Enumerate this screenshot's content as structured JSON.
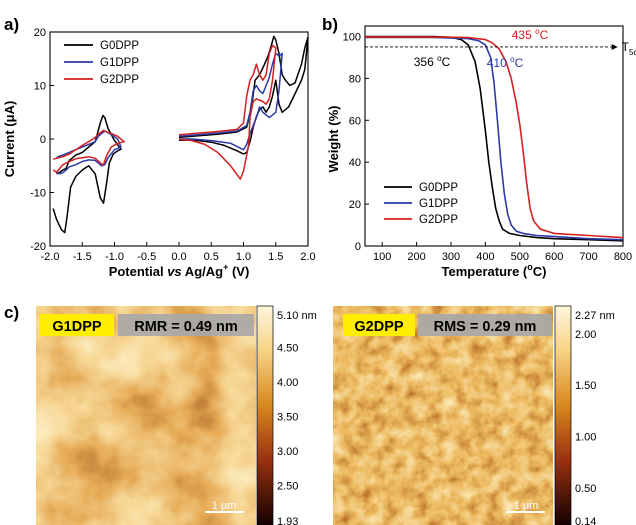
{
  "panels": {
    "a": {
      "label": "a)",
      "chart_data": {
        "type": "line",
        "xlabel_parts": [
          "Potential ",
          "vs",
          " Ag/Ag",
          "+",
          " (V)"
        ],
        "ylabel": "Current (μA)",
        "xlim": [
          -2.0,
          2.0
        ],
        "ylim": [
          -20,
          20
        ],
        "xticks": [
          "-2.0",
          "-1.5",
          "-1.0",
          "-0.5",
          "0.0",
          "0.5",
          "1.0",
          "1.5",
          "2.0"
        ],
        "yticks": [
          "-20",
          "-10",
          "0",
          "10",
          "20"
        ],
        "legend": [
          "G0DPP",
          "G1DPP",
          "G2DPP"
        ],
        "legend_placement": "top-left",
        "series": [
          {
            "name": "G0DPP",
            "color": "#000000",
            "segments": [
              {
                "x": [
                  -1.95,
                  -1.9,
                  -1.82,
                  -1.77,
                  -1.73,
                  -1.68,
                  -1.6,
                  -1.5,
                  -1.4,
                  -1.3,
                  -1.22,
                  -1.17,
                  -1.12,
                  -1.08,
                  -1.02,
                  -0.95,
                  -0.9,
                  -1.0,
                  -1.1,
                  -1.15,
                  -1.18,
                  -1.22,
                  -1.3,
                  -1.4,
                  -1.5,
                  -1.6,
                  -1.7,
                  -1.75,
                  -1.8,
                  -1.85,
                  -1.9
                ],
                "y": [
                  -13,
                  -15,
                  -17,
                  -17.5,
                  -14,
                  -9,
                  -7,
                  -5.8,
                  -5,
                  -6.5,
                  -11,
                  -12,
                  -8,
                  -4.5,
                  -2.8,
                  -2.2,
                  -1.9,
                  -0.3,
                  2,
                  4,
                  4.4,
                  3,
                  -0.5,
                  -1.5,
                  -2.5,
                  -3,
                  -4,
                  -5.5,
                  -5.8,
                  -6.2,
                  -6.5
                ]
              },
              {
                "x": [
                  0.0,
                  0.3,
                  0.6,
                  0.9,
                  1.05,
                  1.12,
                  1.18,
                  1.25,
                  1.32,
                  1.38,
                  1.42,
                  1.47,
                  1.5,
                  1.55,
                  1.6,
                  1.65,
                  1.72,
                  1.8,
                  1.9,
                  1.95,
                  2.0,
                  1.95,
                  1.9,
                  1.8,
                  1.7,
                  1.6,
                  1.55,
                  1.5,
                  1.45,
                  1.4,
                  1.35,
                  1.3,
                  1.25,
                  1.2,
                  1.15,
                  1.1,
                  1.05,
                  1.0,
                  0.9,
                  0.7,
                  0.5,
                  0.3,
                  0.1,
                  0.0
                ],
                "y": [
                  0.3,
                  0.6,
                  0.9,
                  1.3,
                  2.2,
                  5.5,
                  11,
                  12,
                  13.8,
                  15.5,
                  17,
                  19.2,
                  18.5,
                  16,
                  12,
                  11,
                  10,
                  10.5,
                  14,
                  17,
                  19,
                  13,
                  11,
                  8.5,
                  6,
                  5,
                  6.5,
                  11,
                  8,
                  6,
                  5,
                  6,
                  5.5,
                  4.2,
                  2.2,
                  -0.5,
                  -2.5,
                  -2.8,
                  -2.2,
                  -1.2,
                  -0.6,
                  -0.3,
                  -0.2,
                  -0.2
                ]
              }
            ]
          },
          {
            "name": "G1DPP",
            "color": "#2b3aa8",
            "segments": [
              {
                "x": [
                  -1.9,
                  -1.85,
                  -1.8,
                  -1.75,
                  -1.7,
                  -1.6,
                  -1.5,
                  -1.4,
                  -1.3,
                  -1.2,
                  -1.15,
                  -1.1,
                  -1.0,
                  -0.9,
                  -0.95,
                  -1.05,
                  -1.1,
                  -1.15,
                  -1.2,
                  -1.25,
                  -1.3,
                  -1.4,
                  -1.5,
                  -1.6,
                  -1.7,
                  -1.8,
                  -1.85,
                  -1.9
                ],
                "y": [
                  -6.2,
                  -6.5,
                  -6.3,
                  -5.8,
                  -5.2,
                  -4.8,
                  -4.2,
                  -3.9,
                  -4,
                  -5,
                  -4.8,
                  -3.5,
                  -2,
                  -1.5,
                  0,
                  0.8,
                  1.2,
                  1.5,
                  1,
                  0.5,
                  -0.5,
                  -1,
                  -1.5,
                  -2,
                  -2.5,
                  -3,
                  -3.2,
                  -3.5
                ]
              },
              {
                "x": [
                  0.0,
                  0.3,
                  0.6,
                  0.9,
                  1.05,
                  1.1,
                  1.15,
                  1.2,
                  1.25,
                  1.3,
                  1.35,
                  1.4,
                  1.45,
                  1.5,
                  1.55,
                  1.6,
                  1.55,
                  1.5,
                  1.4,
                  1.3,
                  1.25,
                  1.2,
                  1.15,
                  1.1,
                  1.05,
                  1.0,
                  0.8,
                  0.5,
                  0.2,
                  0.0
                ],
                "y": [
                  0.5,
                  0.8,
                  1.1,
                  1.5,
                  2.5,
                  5,
                  9,
                  10,
                  9,
                  8.5,
                  10,
                  11.5,
                  14,
                  16,
                  15.5,
                  16,
                  9,
                  5,
                  4,
                  5,
                  6,
                  4,
                  2.5,
                  1,
                  -1,
                  -2,
                  -0.8,
                  -0.3,
                  0,
                  0
                ]
              }
            ]
          },
          {
            "name": "G2DPP",
            "color": "#d42020",
            "segments": [
              {
                "x": [
                  -1.95,
                  -1.9,
                  -1.85,
                  -1.8,
                  -1.7,
                  -1.6,
                  -1.5,
                  -1.4,
                  -1.3,
                  -1.2,
                  -1.17,
                  -1.12,
                  -1.05,
                  -0.95,
                  -0.85,
                  -0.95,
                  -1.05,
                  -1.12,
                  -1.17,
                  -1.22,
                  -1.3,
                  -1.4,
                  -1.5,
                  -1.6,
                  -1.7,
                  -1.8,
                  -1.9,
                  -1.95
                ],
                "y": [
                  -5.8,
                  -6.2,
                  -5.5,
                  -4.8,
                  -4.2,
                  -3.7,
                  -3.5,
                  -3.3,
                  -3.6,
                  -4.7,
                  -4.8,
                  -3,
                  -1.5,
                  -0.8,
                  -0.5,
                  0.5,
                  1,
                  1.3,
                  1.6,
                  1.2,
                  0.3,
                  -0.5,
                  -1.2,
                  -2,
                  -2.8,
                  -3.3,
                  -3.6,
                  -3.8
                ]
              },
              {
                "x": [
                  0.0,
                  0.3,
                  0.6,
                  0.9,
                  1.0,
                  1.05,
                  1.1,
                  1.15,
                  1.2,
                  1.25,
                  1.3,
                  1.35,
                  1.4,
                  1.45,
                  1.5,
                  1.45,
                  1.4,
                  1.35,
                  1.3,
                  1.2,
                  1.15,
                  1.1,
                  1.08,
                  1.05,
                  1.0,
                  0.95,
                  0.8,
                  0.6,
                  0.4,
                  0.2,
                  0.0
                ],
                "y": [
                  0.8,
                  1.1,
                  1.4,
                  1.8,
                  3,
                  8,
                  11,
                  12,
                  14,
                  12,
                  11,
                  12,
                  16,
                  17.5,
                  17,
                  11,
                  7.5,
                  6.5,
                  7,
                  7.5,
                  7,
                  4,
                  -1,
                  -3,
                  -6,
                  -7.5,
                  -5,
                  -2.5,
                  -1,
                  -0.3,
                  0
                ]
              }
            ]
          }
        ]
      }
    },
    "b": {
      "label": "b)",
      "chart_data": {
        "type": "line",
        "xlabel": "Temperature (",
        "xlabel_deg": "o",
        "xlabel_tail": "C)",
        "ylabel": "Weight (%)",
        "xlim": [
          50,
          800
        ],
        "ylim": [
          0,
          105
        ],
        "xticks": [
          "100",
          "200",
          "300",
          "400",
          "500",
          "600",
          "700",
          "800"
        ],
        "yticks": [
          "0",
          "20",
          "40",
          "60",
          "80",
          "100"
        ],
        "legend": [
          "G0DPP",
          "G1DPP",
          "G2DPP"
        ],
        "legend_placement": "bottom-left",
        "threshold": {
          "y": 95,
          "label": "T",
          "label_sub": "5d",
          "xmax": 770
        },
        "annotations": [
          {
            "text": "356 ",
            "sup": "o",
            "tail": "C",
            "color": "#000000",
            "x": 356
          },
          {
            "text": "410 ",
            "sup": "o",
            "tail": "C",
            "color": "#2b3aa8",
            "x": 410
          },
          {
            "text": "435 ",
            "sup": "o",
            "tail": "C",
            "color": "#d42020",
            "x": 435
          }
        ],
        "series": [
          {
            "name": "G0DPP",
            "color": "#000000",
            "x": [
              50,
              150,
              250,
              300,
              330,
              350,
              370,
              385,
              400,
              410,
              420,
              430,
              440,
              450,
              470,
              500,
              550,
              600,
              700,
              800
            ],
            "y": [
              100,
              100,
              100,
              99.6,
              98.5,
              96,
              88,
              75,
              55,
              40,
              28,
              18,
              12,
              8,
              6,
              5,
              4,
              3.5,
              3,
              2.5
            ]
          },
          {
            "name": "G1DPP",
            "color": "#2b3aa8",
            "x": [
              50,
              150,
              250,
              350,
              380,
              400,
              415,
              425,
              435,
              445,
              455,
              465,
              475,
              490,
              510,
              550,
              600,
              700,
              800
            ],
            "y": [
              99.5,
              99.5,
              99.5,
              99,
              98,
              96,
              90,
              78,
              60,
              40,
              25,
              15,
              10,
              7,
              6,
              5,
              4.5,
              3.5,
              3
            ]
          },
          {
            "name": "G2DPP",
            "color": "#d42020",
            "x": [
              50,
              150,
              250,
              350,
              400,
              420,
              440,
              460,
              475,
              490,
              500,
              510,
              520,
              530,
              540,
              560,
              600,
              700,
              800
            ],
            "y": [
              99.8,
              99.8,
              99.8,
              99.5,
              98.5,
              97,
              94,
              88,
              80,
              68,
              58,
              45,
              30,
              18,
              12,
              8,
              6,
              5,
              4
            ]
          }
        ]
      }
    },
    "c": {
      "label": "c)",
      "images": [
        {
          "name": "G1DPP",
          "caption": "RMR = 0.49 nm",
          "scalebar": "1 μm",
          "colorbar_ticks": [
            "5.10 nm",
            "4.50",
            "4.00",
            "3.50",
            "3.00",
            "2.50",
            "1.93"
          ],
          "colorbar_values": [
            5.1,
            4.5,
            4.0,
            3.5,
            3.0,
            2.5,
            1.93
          ]
        },
        {
          "name": "G2DPP",
          "caption": "RMS = 0.29 nm",
          "scalebar": "1 μm",
          "colorbar_ticks": [
            "2.27 nm",
            "2.00",
            "1.50",
            "1.00",
            "0.50",
            "0.14"
          ],
          "colorbar_values": [
            2.27,
            2.0,
            1.5,
            1.0,
            0.5,
            0.14
          ]
        }
      ]
    }
  },
  "colors": {
    "black_series": "#000000",
    "blue_series": "#2b3aa8",
    "red_series": "#d42020",
    "label_highlight": "#ffee00",
    "caption_box": "#a8a8a8"
  }
}
